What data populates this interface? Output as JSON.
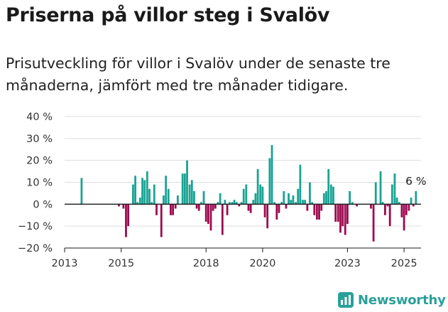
{
  "title": "Priserna på villor steg i Svalöv",
  "subtitle": "Prisutveckling för villor i Svalöv under de senaste tre månaderna, jämfört med tre månader tidigare.",
  "brand": "Newsworthy",
  "colors": {
    "positive": "#1aa394",
    "negative": "#9c0b4f",
    "brand": "#2aa09a",
    "zero_line": "#1a1a1a",
    "grid": "#dddddd"
  },
  "chart_data": {
    "type": "bar",
    "y_tick_labels": [
      "40 %",
      "30 %",
      "20 %",
      "10 %",
      "0 %",
      "−10 %",
      "−20 %"
    ],
    "y_ticks": [
      40,
      30,
      20,
      10,
      0,
      -10,
      -20
    ],
    "ylim": [
      -20,
      40
    ],
    "x_tick_labels": [
      "2013",
      "2015",
      "2018",
      "2020",
      "2023",
      "2025"
    ],
    "x_ticks": [
      2013.0,
      2015.0,
      2018.0,
      2020.0,
      2023.0,
      2025.0
    ],
    "xlim": [
      2013.0,
      2025.6
    ],
    "annotation": "6 %",
    "grid": true,
    "x": [
      2013.6,
      2014.92,
      2015.08,
      2015.17,
      2015.25,
      2015.42,
      2015.5,
      2015.58,
      2015.67,
      2015.75,
      2015.83,
      2015.92,
      2016.0,
      2016.08,
      2016.17,
      2016.25,
      2016.42,
      2016.5,
      2016.58,
      2016.67,
      2016.75,
      2016.83,
      2016.92,
      2017.0,
      2017.17,
      2017.25,
      2017.33,
      2017.42,
      2017.5,
      2017.58,
      2017.67,
      2017.75,
      2017.83,
      2017.92,
      2018.0,
      2018.08,
      2018.17,
      2018.25,
      2018.33,
      2018.42,
      2018.5,
      2018.58,
      2018.67,
      2018.75,
      2018.83,
      2018.92,
      2019.0,
      2019.08,
      2019.17,
      2019.25,
      2019.33,
      2019.42,
      2019.5,
      2019.58,
      2019.67,
      2019.75,
      2019.83,
      2019.92,
      2020.0,
      2020.08,
      2020.17,
      2020.25,
      2020.33,
      2020.42,
      2020.5,
      2020.58,
      2020.67,
      2020.75,
      2020.83,
      2020.92,
      2021.0,
      2021.08,
      2021.17,
      2021.25,
      2021.33,
      2021.42,
      2021.5,
      2021.58,
      2021.67,
      2021.75,
      2021.83,
      2021.92,
      2022.0,
      2022.08,
      2022.17,
      2022.25,
      2022.33,
      2022.42,
      2022.5,
      2022.58,
      2022.67,
      2022.75,
      2022.83,
      2022.92,
      2023.0,
      2023.08,
      2023.17,
      2023.33,
      2023.83,
      2023.92,
      2024.0,
      2024.17,
      2024.25,
      2024.33,
      2024.42,
      2024.5,
      2024.58,
      2024.67,
      2024.75,
      2024.83,
      2024.92,
      2025.0,
      2025.08,
      2025.17,
      2025.25,
      2025.33,
      2025.42
    ],
    "values": [
      12,
      -1,
      -2,
      -15,
      -10,
      9,
      13,
      1,
      3,
      12,
      11,
      15,
      7,
      1,
      9,
      -5,
      -15,
      4,
      13,
      7,
      -5,
      -5,
      -2,
      4,
      14,
      14,
      20,
      9,
      11,
      6,
      -2,
      -3,
      1,
      6,
      -8,
      -9,
      -12,
      -3,
      -2,
      1,
      5,
      -14,
      2,
      -5,
      1,
      1,
      2,
      1,
      -1,
      1,
      7,
      9,
      -3,
      -4,
      2,
      5,
      16,
      9,
      8,
      -6,
      -11,
      21,
      27,
      1,
      -7,
      -4,
      1,
      6,
      -2,
      5,
      2,
      4,
      1,
      7,
      18,
      2,
      2,
      -3,
      10,
      1,
      -5,
      -7,
      -7,
      -3,
      5,
      6,
      16,
      9,
      8,
      -8,
      -8,
      -13,
      -10,
      -14,
      -9,
      6,
      1,
      -1,
      -2,
      -17,
      10,
      15,
      1,
      -5,
      -1,
      -10,
      9,
      14,
      3,
      1,
      -6,
      -12,
      -5,
      -3,
      3,
      -1,
      6
    ]
  }
}
